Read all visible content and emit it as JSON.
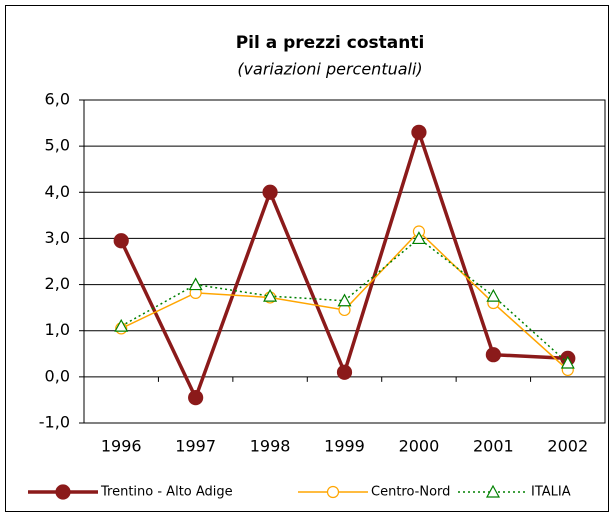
{
  "chart_data": {
    "type": "line",
    "title": "Pil a prezzi costanti",
    "subtitle": "(variazioni percentuali)",
    "categories": [
      "1996",
      "1997",
      "1998",
      "1999",
      "2000",
      "2001",
      "2002"
    ],
    "series": [
      {
        "name": "Trentino - Alto Adige",
        "color": "#8b1a1a",
        "marker": "filled-circle",
        "values": [
          2.95,
          -0.45,
          4.0,
          0.1,
          5.3,
          0.48,
          0.4
        ]
      },
      {
        "name": "Centro-Nord",
        "color": "#ffa500",
        "marker": "hollow-circle",
        "values": [
          1.05,
          1.82,
          1.72,
          1.45,
          3.15,
          1.6,
          0.15
        ]
      },
      {
        "name": "ITALIA",
        "color": "#008000",
        "marker": "hollow-triangle",
        "dashed": true,
        "values": [
          1.1,
          2.0,
          1.75,
          1.65,
          3.0,
          1.75,
          0.3
        ]
      }
    ],
    "ylim": [
      -1,
      6
    ],
    "yticks": [
      {
        "value": -1,
        "label": "-1,0"
      },
      {
        "value": 0,
        "label": "0,0"
      },
      {
        "value": 1,
        "label": "1,0"
      },
      {
        "value": 2,
        "label": "2,0"
      },
      {
        "value": 3,
        "label": "3,0"
      },
      {
        "value": 4,
        "label": "4,0"
      },
      {
        "value": 5,
        "label": "5,0"
      },
      {
        "value": 6,
        "label": "6,0"
      }
    ],
    "grid": true,
    "legend": "bottom"
  }
}
